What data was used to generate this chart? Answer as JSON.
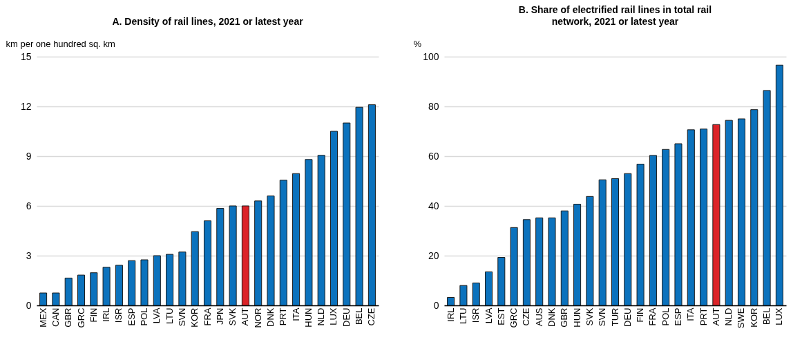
{
  "chart_data": [
    {
      "type": "bar",
      "title": "A. Density of rail lines, 2021 or latest year",
      "ylabel": "km per one hundred sq. km",
      "categories": [
        "MEX",
        "CAN",
        "GBR",
        "GRC",
        "FIN",
        "IRL",
        "ISR",
        "ESP",
        "POL",
        "LVA",
        "LTU",
        "SVN",
        "KOR",
        "FRA",
        "JPN",
        "SVK",
        "AUT",
        "NOR",
        "DNK",
        "PRT",
        "ITA",
        "HUN",
        "NLD",
        "LUX",
        "DEU",
        "BEL",
        "CZE"
      ],
      "values": [
        0.75,
        0.75,
        1.65,
        1.83,
        1.97,
        2.3,
        2.42,
        2.7,
        2.75,
        3.0,
        3.08,
        3.22,
        4.45,
        5.1,
        5.85,
        6.0,
        6.0,
        6.3,
        6.6,
        7.55,
        7.95,
        8.8,
        9.05,
        10.5,
        11.0,
        11.95,
        12.1
      ],
      "colors": [
        "#0b72bd",
        "#0b72bd",
        "#0b72bd",
        "#0b72bd",
        "#0b72bd",
        "#0b72bd",
        "#0b72bd",
        "#0b72bd",
        "#0b72bd",
        "#0b72bd",
        "#0b72bd",
        "#0b72bd",
        "#0b72bd",
        "#0b72bd",
        "#0b72bd",
        "#0b72bd",
        "#dc2328",
        "#0b72bd",
        "#0b72bd",
        "#0b72bd",
        "#0b72bd",
        "#0b72bd",
        "#0b72bd",
        "#0b72bd",
        "#0b72bd",
        "#0b72bd",
        "#0b72bd"
      ],
      "ylim": [
        0,
        15
      ],
      "yticks": [
        0,
        3,
        6,
        9,
        12,
        15
      ],
      "grid": "y"
    },
    {
      "type": "bar",
      "title": "B. Share of electrified rail lines in total rail network, 2021 or latest year",
      "ylabel": "%",
      "categories": [
        "IRL",
        "LTU",
        "ISR",
        "LVA",
        "EST",
        "GRC",
        "CZE",
        "AUS",
        "DNK",
        "GBR",
        "HUN",
        "SVK",
        "SVN",
        "TUR",
        "DEU",
        "FIN",
        "FRA",
        "POL",
        "ESP",
        "ITA",
        "PRT",
        "AUT",
        "NLD",
        "SWE",
        "KOR",
        "BEL",
        "LUX"
      ],
      "values": [
        3.2,
        8,
        9,
        13.5,
        19.3,
        31.3,
        34.5,
        35.2,
        35.2,
        38,
        40.7,
        43.8,
        50.5,
        51,
        53,
        56.8,
        60.3,
        62.7,
        65,
        70.6,
        70.9,
        72.7,
        74.4,
        75,
        78.7,
        86.4,
        96.6
      ],
      "colors": [
        "#0b72bd",
        "#0b72bd",
        "#0b72bd",
        "#0b72bd",
        "#0b72bd",
        "#0b72bd",
        "#0b72bd",
        "#0b72bd",
        "#0b72bd",
        "#0b72bd",
        "#0b72bd",
        "#0b72bd",
        "#0b72bd",
        "#0b72bd",
        "#0b72bd",
        "#0b72bd",
        "#0b72bd",
        "#0b72bd",
        "#0b72bd",
        "#0b72bd",
        "#0b72bd",
        "#dc2328",
        "#0b72bd",
        "#0b72bd",
        "#0b72bd",
        "#0b72bd",
        "#0b72bd"
      ],
      "ylim": [
        0,
        100
      ],
      "yticks": [
        0,
        20,
        40,
        60,
        80,
        100
      ],
      "grid": "y"
    }
  ]
}
